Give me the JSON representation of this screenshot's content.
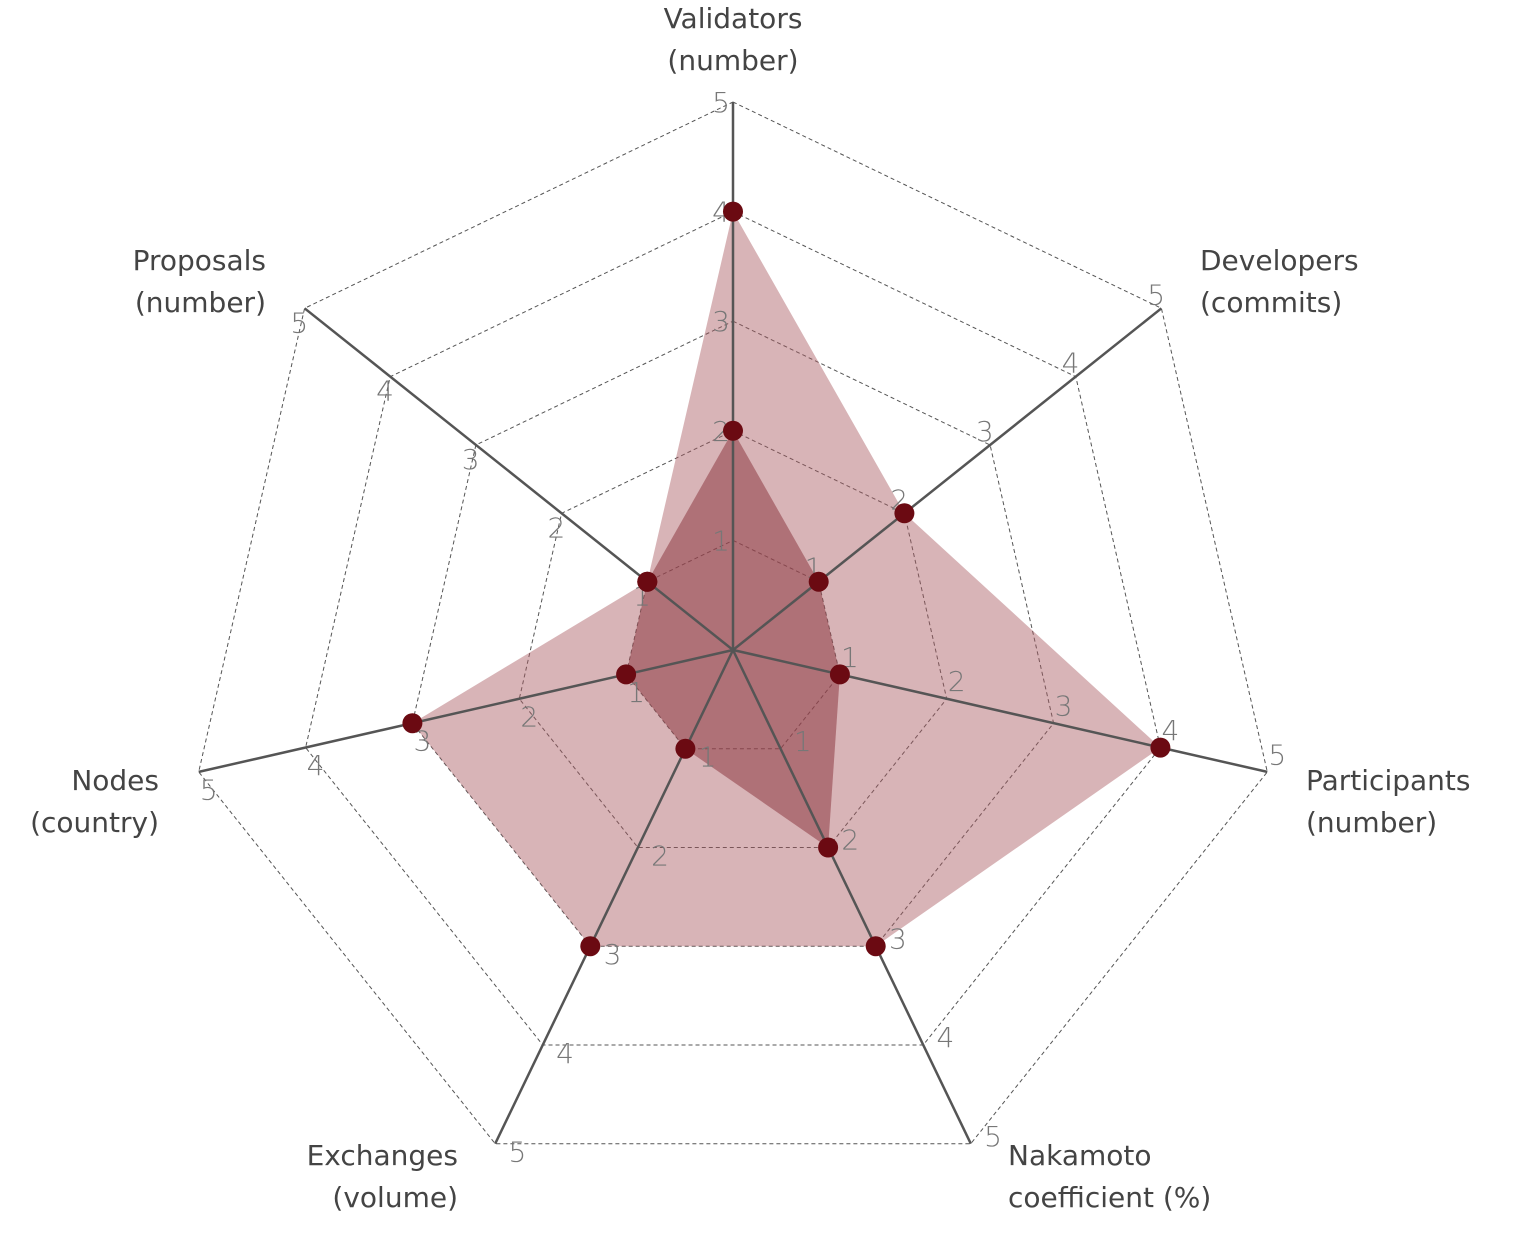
{
  "chart_data": {
    "type": "radar",
    "axes": [
      {
        "label_lines": [
          "Validators",
          "(number)"
        ]
      },
      {
        "label_lines": [
          "Developers",
          "(commits)"
        ]
      },
      {
        "label_lines": [
          "Participants",
          "(number)"
        ]
      },
      {
        "label_lines": [
          "Nakamoto",
          "coefficient (%)"
        ]
      },
      {
        "label_lines": [
          "Exchanges",
          "(volume)"
        ]
      },
      {
        "label_lines": [
          "Nodes",
          "(country)"
        ]
      },
      {
        "label_lines": [
          "Proposals",
          "(number)"
        ]
      }
    ],
    "scale": {
      "min": 0,
      "max": 5,
      "ticks": [
        "1",
        "2",
        "3",
        "4",
        "5"
      ]
    },
    "grid": "dashed",
    "series": [
      {
        "values": [
          4,
          2,
          4,
          3,
          3,
          3,
          1
        ],
        "color": "#a8585f",
        "opacity": 0.45
      },
      {
        "values": [
          2,
          1,
          1,
          2,
          1,
          1,
          1
        ],
        "color": "#8e3a44",
        "opacity": 0.55
      }
    ],
    "marker_color": "#6b0a12"
  }
}
